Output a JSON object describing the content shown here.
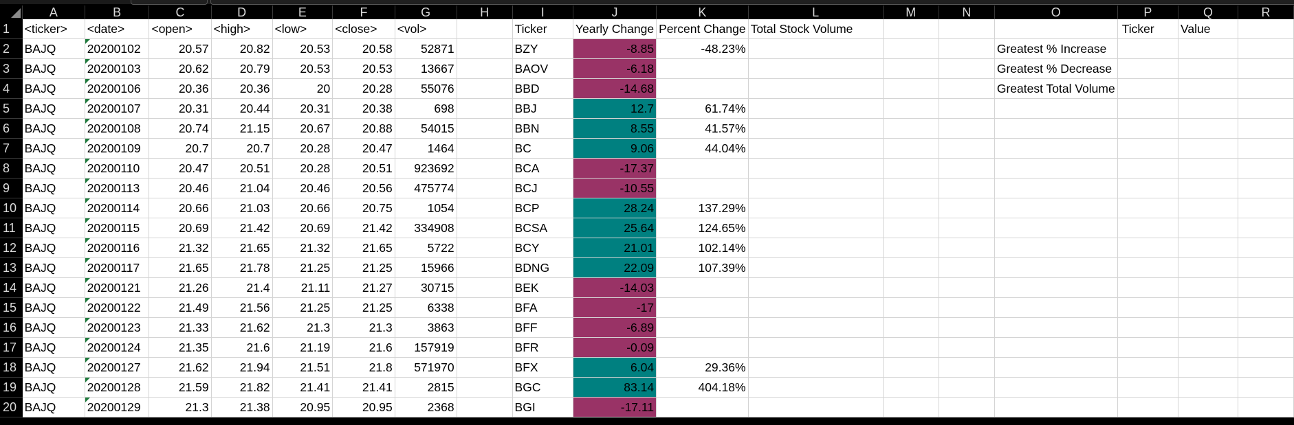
{
  "columns": [
    "A",
    "B",
    "C",
    "D",
    "E",
    "F",
    "G",
    "H",
    "I",
    "J",
    "K",
    "L",
    "M",
    "N",
    "O",
    "P",
    "Q",
    "R"
  ],
  "header_row": {
    "A": "<ticker>",
    "B": "<date>",
    "C": "<open>",
    "D": "<high>",
    "E": "<low>",
    "F": "<close>",
    "G": "<vol>",
    "I": "Ticker",
    "J": "Yearly Change",
    "K": "Percent Change",
    "L": "Total Stock Volume",
    "P": "Ticker",
    "Q": "Value"
  },
  "data_rows": [
    [
      "BAJQ",
      "20200102",
      "20.57",
      "20.82",
      "20.53",
      "20.58",
      "52871"
    ],
    [
      "BAJQ",
      "20200103",
      "20.62",
      "20.79",
      "20.53",
      "20.53",
      "13667"
    ],
    [
      "BAJQ",
      "20200106",
      "20.36",
      "20.36",
      "20",
      "20.28",
      "55076"
    ],
    [
      "BAJQ",
      "20200107",
      "20.31",
      "20.44",
      "20.31",
      "20.38",
      "698"
    ],
    [
      "BAJQ",
      "20200108",
      "20.74",
      "21.15",
      "20.67",
      "20.88",
      "54015"
    ],
    [
      "BAJQ",
      "20200109",
      "20.7",
      "20.7",
      "20.28",
      "20.47",
      "1464"
    ],
    [
      "BAJQ",
      "20200110",
      "20.47",
      "20.51",
      "20.28",
      "20.51",
      "923692"
    ],
    [
      "BAJQ",
      "20200113",
      "20.46",
      "21.04",
      "20.46",
      "20.56",
      "475774"
    ],
    [
      "BAJQ",
      "20200114",
      "20.66",
      "21.03",
      "20.66",
      "20.75",
      "1054"
    ],
    [
      "BAJQ",
      "20200115",
      "20.69",
      "21.42",
      "20.69",
      "21.42",
      "334908"
    ],
    [
      "BAJQ",
      "20200116",
      "21.32",
      "21.65",
      "21.32",
      "21.65",
      "5722"
    ],
    [
      "BAJQ",
      "20200117",
      "21.65",
      "21.78",
      "21.25",
      "21.25",
      "15966"
    ],
    [
      "BAJQ",
      "20200121",
      "21.26",
      "21.4",
      "21.11",
      "21.27",
      "30715"
    ],
    [
      "BAJQ",
      "20200122",
      "21.49",
      "21.56",
      "21.25",
      "21.25",
      "6338"
    ],
    [
      "BAJQ",
      "20200123",
      "21.33",
      "21.62",
      "21.3",
      "21.3",
      "3863"
    ],
    [
      "BAJQ",
      "20200124",
      "21.35",
      "21.6",
      "21.19",
      "21.6",
      "157919"
    ],
    [
      "BAJQ",
      "20200127",
      "21.62",
      "21.94",
      "21.51",
      "21.8",
      "571970"
    ],
    [
      "BAJQ",
      "20200128",
      "21.59",
      "21.82",
      "21.41",
      "21.41",
      "2815"
    ],
    [
      "BAJQ",
      "20200129",
      "21.3",
      "21.38",
      "20.95",
      "20.95",
      "2368"
    ]
  ],
  "summary_rows": [
    {
      "ticker": "BZY",
      "change": "-8.85",
      "pct": "-48.23%",
      "sign": "neg"
    },
    {
      "ticker": "BAOV",
      "change": "-6.18",
      "pct": "",
      "sign": "neg"
    },
    {
      "ticker": "BBD",
      "change": "-14.68",
      "pct": "",
      "sign": "neg"
    },
    {
      "ticker": "BBJ",
      "change": "12.7",
      "pct": "61.74%",
      "sign": "pos"
    },
    {
      "ticker": "BBN",
      "change": "8.55",
      "pct": "41.57%",
      "sign": "pos"
    },
    {
      "ticker": "BC",
      "change": "9.06",
      "pct": "44.04%",
      "sign": "pos"
    },
    {
      "ticker": "BCA",
      "change": "-17.37",
      "pct": "",
      "sign": "neg"
    },
    {
      "ticker": "BCJ",
      "change": "-10.55",
      "pct": "",
      "sign": "neg"
    },
    {
      "ticker": "BCP",
      "change": "28.24",
      "pct": "137.29%",
      "sign": "pos"
    },
    {
      "ticker": "BCSA",
      "change": "25.64",
      "pct": "124.65%",
      "sign": "pos"
    },
    {
      "ticker": "BCY",
      "change": "21.01",
      "pct": "102.14%",
      "sign": "pos"
    },
    {
      "ticker": "BDNG",
      "change": "22.09",
      "pct": "107.39%",
      "sign": "pos"
    },
    {
      "ticker": "BEK",
      "change": "-14.03",
      "pct": "",
      "sign": "neg"
    },
    {
      "ticker": "BFA",
      "change": "-17",
      "pct": "",
      "sign": "neg"
    },
    {
      "ticker": "BFF",
      "change": "-6.89",
      "pct": "",
      "sign": "neg"
    },
    {
      "ticker": "BFR",
      "change": "-0.09",
      "pct": "",
      "sign": "neg"
    },
    {
      "ticker": "BFX",
      "change": "6.04",
      "pct": "29.36%",
      "sign": "pos"
    },
    {
      "ticker": "BGC",
      "change": "83.14",
      "pct": "404.18%",
      "sign": "pos"
    },
    {
      "ticker": "BGI",
      "change": "-17.11",
      "pct": "",
      "sign": "neg"
    }
  ],
  "greatest_labels": [
    "Greatest % Increase",
    "Greatest % Decrease",
    "Greatest Total Volume"
  ],
  "colors": {
    "positive": "#008080",
    "negative": "#993366"
  }
}
